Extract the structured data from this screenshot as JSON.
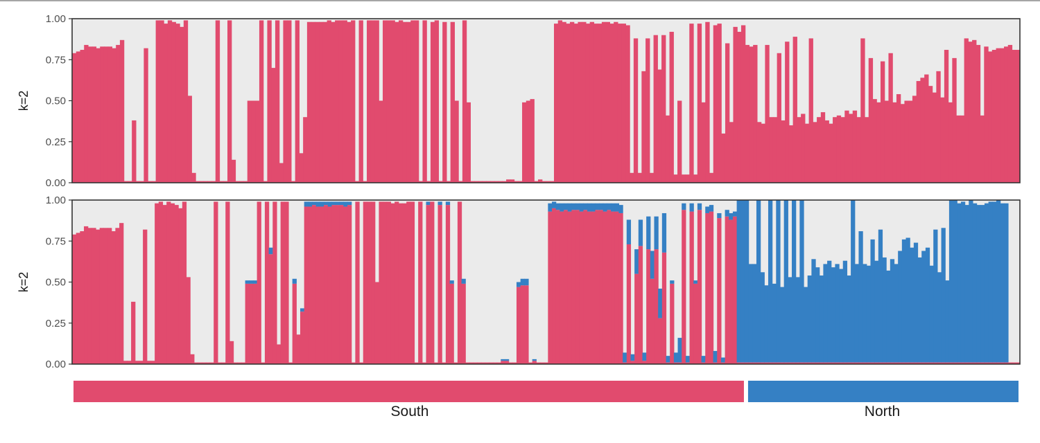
{
  "colors": {
    "cluster_south": "#e14b6e",
    "cluster_north": "#3580c4",
    "remainder": "#ebebeb",
    "axis": "#333333"
  },
  "chart_data": [
    {
      "type": "bar",
      "stacked": true,
      "ylabel": "k=2",
      "ylim": [
        0,
        1
      ],
      "yticks": [
        "0.00",
        "0.25",
        "0.50",
        "0.75",
        "1.00"
      ],
      "series": [
        {
          "values": [
            0.79,
            0.8,
            0.81,
            0.84,
            0.83,
            0.83,
            0.82,
            0.83,
            0.83,
            0.83,
            0.82,
            0.84,
            0.87,
            0.01,
            0.01,
            0.38,
            0.01,
            0.01,
            0.82,
            0.01,
            0.01,
            0.99,
            0.99,
            0.97,
            0.99,
            0.98,
            0.97,
            0.95,
            0.99,
            0.53,
            0.06,
            0.01,
            0.01,
            0.01,
            0.01,
            0.01,
            0.99,
            0.01,
            0.01,
            0.99,
            0.14,
            0.01,
            0.01,
            0.01,
            0.5,
            0.5,
            0.5,
            0.99,
            0.01,
            0.99,
            0.7,
            0.99,
            0.12,
            0.99,
            0.99,
            0.01,
            0.99,
            0.18,
            0.4,
            0.98,
            0.98,
            0.98,
            0.98,
            0.98,
            0.99,
            0.98,
            0.99,
            0.99,
            0.99,
            0.98,
            0.99,
            0.01,
            0.99,
            0.01,
            0.99,
            0.99,
            0.99,
            0.5,
            0.99,
            0.99,
            0.99,
            0.98,
            0.99,
            0.98,
            0.98,
            0.99,
            0.99,
            0.01,
            0.99,
            0.01,
            0.98,
            0.99,
            0.01,
            0.98,
            0.01,
            0.98,
            0.5,
            0.01,
            0.99,
            0.49,
            0.01,
            0.01,
            0.01,
            0.01,
            0.01,
            0.01,
            0.01,
            0.01,
            0.01,
            0.02,
            0.02,
            0.01,
            0.01,
            0.49,
            0.5,
            0.51,
            0.01,
            0.02,
            0.01,
            0.01,
            0.01,
            0.97,
            0.99,
            0.98,
            0.97,
            0.98,
            0.97,
            0.98,
            0.98,
            0.97,
            0.98,
            0.97,
            0.97,
            0.98,
            0.98,
            0.97,
            0.98,
            0.97,
            0.97,
            0.96,
            0.06,
            0.88,
            0.06,
            0.68,
            0.88,
            0.06,
            0.9,
            0.69,
            0.9,
            0.41,
            0.92,
            0.05,
            0.5,
            0.05,
            0.05,
            0.97,
            0.05,
            0.97,
            0.49,
            0.98,
            0.06,
            0.96,
            0.97,
            0.3,
            0.85,
            0.37,
            0.95,
            0.92,
            0.96,
            0.84,
            0.83,
            0.84,
            0.37,
            0.36,
            0.84,
            0.4,
            0.4,
            0.79,
            0.38,
            0.86,
            0.35,
            0.89,
            0.4,
            0.42,
            0.36,
            0.88,
            0.37,
            0.4,
            0.43,
            0.38,
            0.36,
            0.4,
            0.41,
            0.4,
            0.44,
            0.42,
            0.44,
            0.4,
            0.88,
            0.4,
            0.76,
            0.51,
            0.49,
            0.74,
            0.5,
            0.79,
            0.49,
            0.54,
            0.48,
            0.5,
            0.5,
            0.53,
            0.62,
            0.64,
            0.66,
            0.59,
            0.55,
            0.68,
            0.52,
            0.81,
            0.49,
            0.76,
            0.41,
            0.41,
            0.88,
            0.86,
            0.87,
            0.84,
            0.41,
            0.83,
            0.8,
            0.81,
            0.82,
            0.82,
            0.83,
            0.84,
            0.81,
            0.81
          ]
        }
      ]
    },
    {
      "type": "bar",
      "stacked": true,
      "ylabel": "k=2",
      "ylim": [
        0,
        1
      ],
      "yticks": [
        "0.00",
        "0.25",
        "0.50",
        "0.75",
        "1.00"
      ],
      "series": [
        {
          "values": [
            0.79,
            0.8,
            0.81,
            0.84,
            0.83,
            0.83,
            0.82,
            0.83,
            0.83,
            0.83,
            0.81,
            0.83,
            0.86,
            0.02,
            0.02,
            0.38,
            0.02,
            0.02,
            0.82,
            0.02,
            0.02,
            0.98,
            0.99,
            0.97,
            0.99,
            0.98,
            0.97,
            0.95,
            0.99,
            0.53,
            0.06,
            0.01,
            0.01,
            0.01,
            0.01,
            0.01,
            0.99,
            0.01,
            0.01,
            0.99,
            0.14,
            0.01,
            0.01,
            0.01,
            0.49,
            0.49,
            0.49,
            0.99,
            0.01,
            0.99,
            0.67,
            0.99,
            0.12,
            0.99,
            0.99,
            0.01,
            0.49,
            0.18,
            0.32,
            0.96,
            0.96,
            0.97,
            0.96,
            0.96,
            0.97,
            0.96,
            0.97,
            0.97,
            0.97,
            0.96,
            0.97,
            0.01,
            0.99,
            0.01,
            0.99,
            0.99,
            0.99,
            0.5,
            0.99,
            0.99,
            0.99,
            0.98,
            0.99,
            0.98,
            0.98,
            0.99,
            0.99,
            0.01,
            0.99,
            0.01,
            0.97,
            0.99,
            0.01,
            0.97,
            0.01,
            0.97,
            0.49,
            0.01,
            0.99,
            0.49,
            0.01,
            0.01,
            0.01,
            0.01,
            0.01,
            0.01,
            0.01,
            0.01,
            0.01,
            0.02,
            0.02,
            0.01,
            0.01,
            0.47,
            0.48,
            0.48,
            0.01,
            0.02,
            0.01,
            0.01,
            0.01,
            0.93,
            0.95,
            0.94,
            0.93,
            0.94,
            0.93,
            0.94,
            0.94,
            0.93,
            0.94,
            0.93,
            0.93,
            0.94,
            0.94,
            0.93,
            0.94,
            0.93,
            0.93,
            0.92,
            0.01,
            0.73,
            0.02,
            0.55,
            0.72,
            0.02,
            0.7,
            0.52,
            0.7,
            0.28,
            0.68,
            0.01,
            0.49,
            0.01,
            0.01,
            0.94,
            0.01,
            0.93,
            0.49,
            0.94,
            0.01,
            0.92,
            0.93,
            0.01,
            0.89,
            0.01,
            0.9,
            0.88,
            0.9,
            0.01,
            0.01,
            0.01,
            0.01,
            0.01,
            0.01,
            0.01,
            0.01,
            0.01,
            0.01,
            0.01,
            0.01,
            0.01,
            0.01,
            0.01,
            0.01,
            0.01,
            0.01,
            0.01,
            0.01,
            0.01,
            0.01,
            0.01,
            0.01,
            0.01,
            0.01,
            0.01,
            0.01,
            0.01,
            0.01,
            0.01,
            0.01,
            0.01,
            0.01,
            0.01,
            0.01,
            0.01,
            0.01,
            0.01,
            0.01,
            0.01,
            0.01,
            0.01,
            0.01,
            0.01,
            0.01,
            0.01,
            0.01,
            0.01,
            0.01,
            0.01,
            0.01,
            0.01,
            0.01,
            0.01,
            0.01,
            0.01,
            0.01,
            0.01,
            0.01,
            0.01,
            0.01,
            0.01,
            0.01,
            0.01,
            0.01,
            0.01,
            0.01,
            0.01,
            0.01,
            0.01,
            0.01
          ]
        },
        {
          "values": [
            0,
            0,
            0,
            0,
            0,
            0,
            0,
            0,
            0,
            0,
            0,
            0,
            0,
            0,
            0,
            0,
            0,
            0,
            0,
            0,
            0,
            0,
            0,
            0,
            0,
            0,
            0,
            0,
            0,
            0,
            0,
            0,
            0,
            0,
            0,
            0,
            0,
            0,
            0,
            0,
            0,
            0,
            0,
            0,
            0.02,
            0.02,
            0.02,
            0,
            0,
            0,
            0.04,
            0,
            0,
            0,
            0,
            0,
            0.03,
            0,
            0.02,
            0.03,
            0.03,
            0.02,
            0.03,
            0.03,
            0.02,
            0.03,
            0.02,
            0.02,
            0.02,
            0.03,
            0.02,
            0,
            0,
            0,
            0,
            0,
            0,
            0,
            0,
            0,
            0,
            0,
            0,
            0,
            0,
            0,
            0,
            0,
            0,
            0,
            0.02,
            0,
            0,
            0.02,
            0,
            0.02,
            0.02,
            0,
            0,
            0.03,
            0,
            0,
            0,
            0,
            0,
            0,
            0,
            0,
            0,
            0.01,
            0.01,
            0,
            0,
            0.03,
            0.04,
            0.04,
            0,
            0.01,
            0,
            0,
            0,
            0.05,
            0.04,
            0.04,
            0.05,
            0.04,
            0.05,
            0.04,
            0.04,
            0.05,
            0.04,
            0.05,
            0.05,
            0.04,
            0.04,
            0.05,
            0.04,
            0.05,
            0.05,
            0.05,
            0.06,
            0.15,
            0.04,
            0.15,
            0.16,
            0.05,
            0.2,
            0.17,
            0.2,
            0.18,
            0.24,
            0.04,
            0.02,
            0.06,
            0.15,
            0.04,
            0.04,
            0.05,
            0.02,
            0.04,
            0.04,
            0.04,
            0.04,
            0.07,
            0.03,
            0.03,
            0.04,
            0.04,
            0.03,
            0.99,
            0.99,
            0.99,
            0.6,
            0.6,
            0.99,
            0.55,
            0.47,
            0.99,
            0.48,
            0.99,
            0.46,
            0.99,
            0.52,
            0.99,
            0.52,
            0.99,
            0.46,
            0.53,
            0.63,
            0.58,
            0.53,
            0.6,
            0.62,
            0.58,
            0.6,
            0.57,
            0.62,
            0.53,
            0.99,
            0.6,
            0.8,
            0.6,
            0.59,
            0.75,
            0.62,
            0.81,
            0.64,
            0.56,
            0.63,
            0.6,
            0.68,
            0.75,
            0.76,
            0.7,
            0.73,
            0.64,
            0.68,
            0.7,
            0.59,
            0.81,
            0.55,
            0.82,
            0.5,
            0.99,
            0.99,
            0.97,
            0.98,
            0.96,
            0.99,
            0.97,
            0.96,
            0.96,
            0.97,
            0.98,
            0.98,
            0.99,
            0.97,
            0.97
          ]
        }
      ]
    }
  ],
  "groups": [
    {
      "label": "South",
      "count": 153
    },
    {
      "label": "North",
      "count": 62
    }
  ]
}
